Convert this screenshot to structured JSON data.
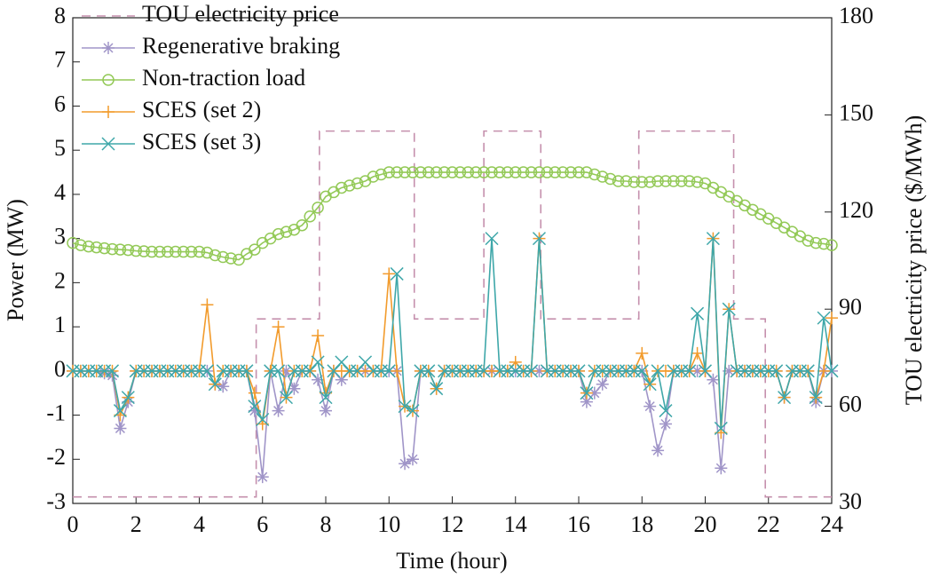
{
  "chart_data": {
    "type": "line",
    "xlabel": "Time (hour)",
    "ylabel": "Power (MW)",
    "y2label": "TOU electricity price ($/MWh)",
    "xlim": [
      0,
      24
    ],
    "xticks": [
      0,
      2,
      4,
      6,
      8,
      10,
      12,
      14,
      16,
      18,
      20,
      22,
      24
    ],
    "ylim": [
      -3,
      8
    ],
    "yticks": [
      -3,
      -2,
      -1,
      0,
      1,
      2,
      3,
      4,
      5,
      6,
      7,
      8
    ],
    "y2lim": [
      30,
      180
    ],
    "y2ticks": [
      30,
      60,
      90,
      120,
      150,
      180
    ],
    "legend": "upper left",
    "x": [
      0,
      0.25,
      0.5,
      0.75,
      1,
      1.25,
      1.5,
      1.75,
      2,
      2.25,
      2.5,
      2.75,
      3,
      3.25,
      3.5,
      3.75,
      4,
      4.25,
      4.5,
      4.75,
      5,
      5.25,
      5.5,
      5.75,
      6,
      6.25,
      6.5,
      6.75,
      7,
      7.25,
      7.5,
      7.75,
      8,
      8.25,
      8.5,
      8.75,
      9,
      9.25,
      9.5,
      9.75,
      10,
      10.25,
      10.5,
      10.75,
      11,
      11.25,
      11.5,
      11.75,
      12,
      12.25,
      12.5,
      12.75,
      13,
      13.25,
      13.5,
      13.75,
      14,
      14.25,
      14.5,
      14.75,
      15,
      15.25,
      15.5,
      15.75,
      16,
      16.25,
      16.5,
      16.75,
      17,
      17.25,
      17.5,
      17.75,
      18,
      18.25,
      18.5,
      18.75,
      19,
      19.25,
      19.5,
      19.75,
      20,
      20.25,
      20.5,
      20.75,
      21,
      21.25,
      21.5,
      21.75,
      22,
      22.25,
      22.5,
      22.75,
      23,
      23.25,
      23.5,
      23.75,
      24
    ],
    "series": [
      {
        "name": "TOU electricity price",
        "color": "#c590ad",
        "marker": "none",
        "dash": true,
        "axis": "y2",
        "x": [
          0,
          5.8,
          5.8,
          7.8,
          7.8,
          10.8,
          10.8,
          13,
          13,
          14.8,
          14.8,
          17.9,
          17.9,
          20.9,
          20.9,
          21.9,
          21.9,
          24
        ],
        "values": [
          32,
          32,
          87,
          87,
          145,
          145,
          87,
          87,
          145,
          145,
          87,
          87,
          145,
          145,
          87,
          87,
          32,
          32
        ]
      },
      {
        "name": "Regenerative braking",
        "color": "#a095c8",
        "marker": "star",
        "values": [
          0,
          0,
          0,
          0,
          -0.05,
          -0.1,
          -1.3,
          -0.7,
          0,
          0,
          0,
          0,
          0,
          0,
          0,
          0,
          0,
          0,
          -0.3,
          -0.35,
          0,
          0,
          0,
          -0.9,
          -2.4,
          0,
          -0.9,
          0,
          -0.4,
          0,
          0,
          -0.2,
          -0.9,
          0,
          -0.2,
          0,
          0,
          0,
          0,
          0,
          0,
          0,
          -2.1,
          -2.0,
          0,
          0,
          -0.4,
          0,
          0,
          0,
          0,
          0,
          0,
          0,
          0,
          0,
          0,
          0,
          0,
          0,
          0,
          0,
          0,
          0,
          0,
          -0.7,
          -0.5,
          -0.3,
          0,
          0,
          0,
          0,
          0,
          -0.8,
          -1.8,
          -1.2,
          0,
          0,
          0,
          0,
          0,
          -0.2,
          -2.2,
          0,
          0,
          0,
          0,
          0,
          0,
          0,
          -0.6,
          0,
          0,
          0,
          -0.7,
          0,
          0
        ]
      },
      {
        "name": "Non-traction load",
        "color": "#93c957",
        "marker": "circle",
        "values": [
          2.9,
          2.85,
          2.82,
          2.8,
          2.78,
          2.76,
          2.75,
          2.74,
          2.72,
          2.71,
          2.7,
          2.7,
          2.7,
          2.7,
          2.7,
          2.7,
          2.7,
          2.68,
          2.62,
          2.58,
          2.55,
          2.52,
          2.65,
          2.75,
          2.9,
          3.0,
          3.1,
          3.15,
          3.2,
          3.3,
          3.5,
          3.7,
          3.95,
          4.05,
          4.15,
          4.2,
          4.25,
          4.3,
          4.4,
          4.45,
          4.5,
          4.5,
          4.5,
          4.5,
          4.5,
          4.5,
          4.5,
          4.5,
          4.5,
          4.5,
          4.5,
          4.5,
          4.5,
          4.5,
          4.5,
          4.5,
          4.5,
          4.5,
          4.5,
          4.5,
          4.5,
          4.5,
          4.5,
          4.5,
          4.5,
          4.5,
          4.45,
          4.4,
          4.35,
          4.3,
          4.3,
          4.28,
          4.28,
          4.28,
          4.3,
          4.3,
          4.3,
          4.3,
          4.3,
          4.28,
          4.25,
          4.15,
          4.05,
          3.95,
          3.85,
          3.75,
          3.65,
          3.55,
          3.45,
          3.35,
          3.25,
          3.15,
          3.05,
          2.95,
          2.9,
          2.88,
          2.85
        ]
      },
      {
        "name": "SCES (set 2)",
        "color": "#f29b2c",
        "marker": "plus",
        "values": [
          0,
          0,
          0,
          0,
          0,
          0,
          -1.0,
          -0.6,
          0,
          0,
          0,
          0,
          0,
          0,
          0,
          0,
          0,
          1.5,
          -0.3,
          0,
          0,
          0,
          0,
          -0.5,
          -1.2,
          0,
          1.0,
          -0.6,
          0,
          0,
          0,
          0.8,
          -0.5,
          0,
          0,
          0,
          0,
          0,
          0,
          0,
          2.2,
          0,
          -0.8,
          -0.9,
          0,
          0,
          -0.4,
          0,
          0,
          0,
          0,
          0,
          0,
          0,
          0,
          0,
          0.2,
          0,
          0,
          3.0,
          0,
          0,
          0,
          0,
          0,
          -0.5,
          0,
          0,
          0,
          0,
          0,
          0,
          0.4,
          -0.3,
          0,
          0,
          0,
          0,
          0,
          0.4,
          0,
          3.0,
          -1.4,
          1.4,
          0,
          0,
          0,
          0,
          0,
          0,
          -0.6,
          0,
          0,
          0,
          -0.6,
          0,
          1.2
        ]
      },
      {
        "name": "SCES (set 3)",
        "color": "#3ea7a9",
        "marker": "x",
        "values": [
          0,
          0,
          0,
          0,
          0,
          0,
          -0.9,
          -0.6,
          0,
          0,
          0,
          0,
          0,
          0,
          0,
          0,
          0,
          0,
          -0.3,
          0,
          0,
          0,
          0,
          -0.8,
          -1.1,
          0,
          0,
          -0.6,
          0,
          0,
          0,
          0.2,
          -0.6,
          0,
          0.2,
          0,
          0,
          0.2,
          0,
          0,
          0,
          2.2,
          -0.8,
          -0.9,
          0,
          0,
          -0.4,
          0,
          0,
          0,
          0,
          0,
          0,
          3.0,
          0,
          0,
          0,
          0,
          0,
          3.0,
          0,
          0,
          0,
          0,
          0,
          -0.5,
          0,
          0,
          0,
          0,
          0,
          0,
          0,
          -0.3,
          0,
          -0.9,
          0,
          0,
          0,
          1.3,
          0,
          3.0,
          -1.3,
          1.4,
          0,
          0,
          0,
          0,
          0,
          0,
          -0.6,
          0,
          0,
          0,
          -0.6,
          1.2,
          0
        ]
      }
    ]
  }
}
